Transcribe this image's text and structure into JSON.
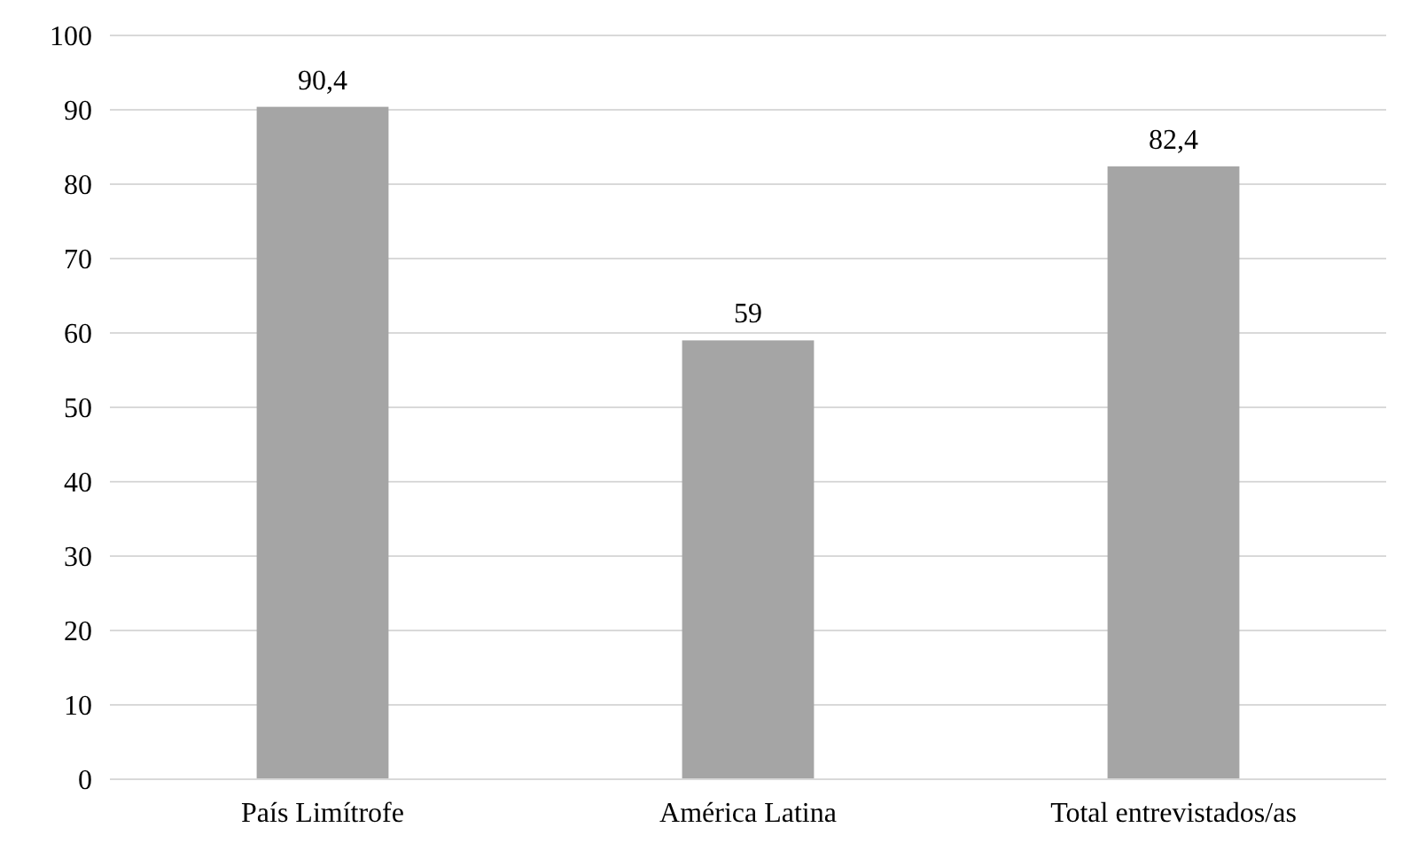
{
  "chart_data": {
    "type": "bar",
    "categories": [
      "País Limítrofe",
      "América Latina",
      "Total entrevistados/as"
    ],
    "values": [
      90.4,
      59,
      82.4
    ],
    "value_labels": [
      "90,4",
      "59",
      "82,4"
    ],
    "color": "#a5a5a5",
    "ylim": [
      0,
      100
    ],
    "yticks": [
      0,
      10,
      20,
      30,
      40,
      50,
      60,
      70,
      80,
      90,
      100
    ],
    "grid": "y"
  }
}
